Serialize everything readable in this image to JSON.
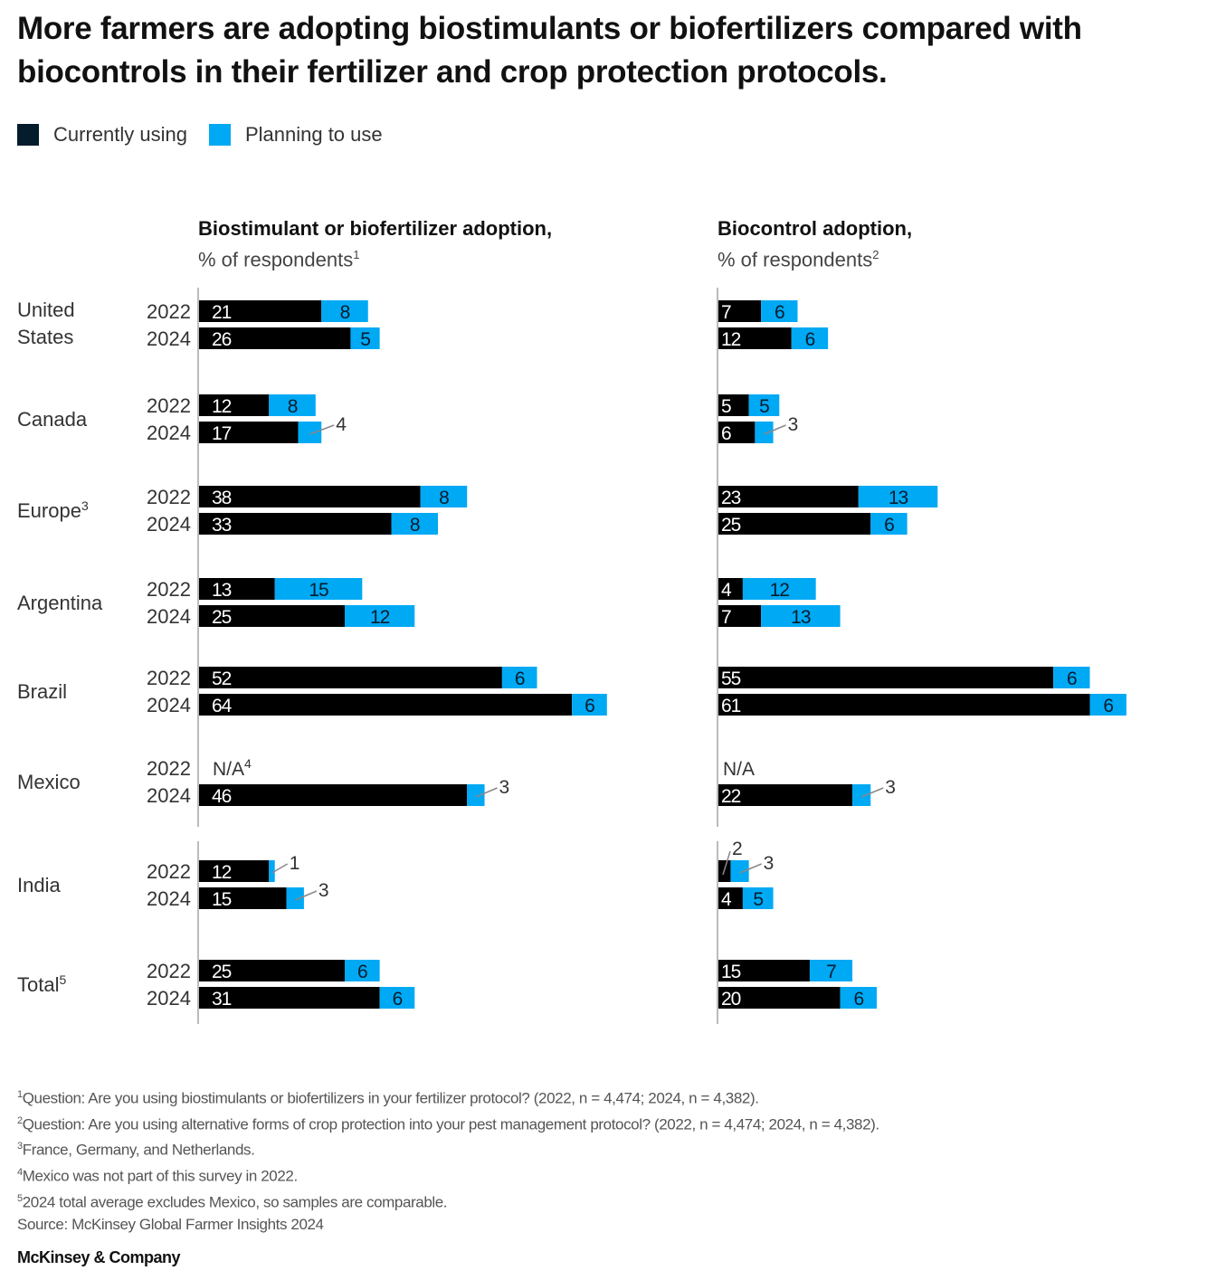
{
  "title": "More farmers are adopting biostimulants or biofertilizers compared with biocontrols in their fertilizer and crop protection protocols.",
  "legend": [
    {
      "label": "Currently using",
      "color": "#051c2c"
    },
    {
      "label": "Planning to use",
      "color": "#00a9f4"
    }
  ],
  "panels": [
    {
      "title": "Biostimulant or biofertilizer adoption,",
      "subtitle": "% of respondents",
      "footnote_ref": "1"
    },
    {
      "title": "Biocontrol adoption,",
      "subtitle": "% of respondents",
      "footnote_ref": "2"
    }
  ],
  "colors": {
    "current": "#000000",
    "planning": "#00a9f4",
    "axis": "#bbbbbb"
  },
  "chart_data": [
    {
      "type": "bar",
      "stacked": true,
      "orientation": "horizontal",
      "title": "Biostimulant or biofertilizer adoption, % of respondents",
      "legend": [
        "Currently using",
        "Planning to use"
      ],
      "groups": [
        {
          "label": "United States",
          "footnote": "",
          "rows": [
            {
              "year": "2022",
              "current": 21,
              "planning": 8
            },
            {
              "year": "2024",
              "current": 26,
              "planning": 5
            }
          ]
        },
        {
          "label": "Canada",
          "footnote": "",
          "rows": [
            {
              "year": "2022",
              "current": 12,
              "planning": 8
            },
            {
              "year": "2024",
              "current": 17,
              "planning": 4,
              "planning_callout": true
            }
          ]
        },
        {
          "label": "Europe",
          "footnote": "3",
          "rows": [
            {
              "year": "2022",
              "current": 38,
              "planning": 8
            },
            {
              "year": "2024",
              "current": 33,
              "planning": 8
            }
          ]
        },
        {
          "label": "Argentina",
          "footnote": "",
          "rows": [
            {
              "year": "2022",
              "current": 13,
              "planning": 15
            },
            {
              "year": "2024",
              "current": 25,
              "planning": 12
            }
          ]
        },
        {
          "label": "Brazil",
          "footnote": "",
          "rows": [
            {
              "year": "2022",
              "current": 52,
              "planning": 6
            },
            {
              "year": "2024",
              "current": 64,
              "planning": 6
            }
          ]
        },
        {
          "label": "Mexico",
          "footnote": "",
          "rows": [
            {
              "year": "2022",
              "na": "N/A",
              "na_footnote": "4"
            },
            {
              "year": "2024",
              "current": 46,
              "planning": 3,
              "planning_callout": true
            }
          ]
        },
        {
          "label": "India",
          "footnote": "",
          "rows": [
            {
              "year": "2022",
              "current": 12,
              "planning": 1,
              "planning_callout": true
            },
            {
              "year": "2024",
              "current": 15,
              "planning": 3,
              "planning_callout": true
            }
          ]
        },
        {
          "label": "Total",
          "footnote": "5",
          "rows": [
            {
              "year": "2022",
              "current": 25,
              "planning": 6
            },
            {
              "year": "2024",
              "current": 31,
              "planning": 6
            }
          ]
        }
      ]
    },
    {
      "type": "bar",
      "stacked": true,
      "orientation": "horizontal",
      "title": "Biocontrol adoption, % of respondents",
      "legend": [
        "Currently using",
        "Planning to use"
      ],
      "groups": [
        {
          "label": "United States",
          "rows": [
            {
              "year": "2022",
              "current": 7,
              "planning": 6
            },
            {
              "year": "2024",
              "current": 12,
              "planning": 6
            }
          ]
        },
        {
          "label": "Canada",
          "rows": [
            {
              "year": "2022",
              "current": 5,
              "planning": 5
            },
            {
              "year": "2024",
              "current": 6,
              "planning": 3,
              "planning_callout": true
            }
          ]
        },
        {
          "label": "Europe",
          "rows": [
            {
              "year": "2022",
              "current": 23,
              "planning": 13
            },
            {
              "year": "2024",
              "current": 25,
              "planning": 6
            }
          ]
        },
        {
          "label": "Argentina",
          "rows": [
            {
              "year": "2022",
              "current": 4,
              "planning": 12
            },
            {
              "year": "2024",
              "current": 7,
              "planning": 13
            }
          ]
        },
        {
          "label": "Brazil",
          "rows": [
            {
              "year": "2022",
              "current": 55,
              "planning": 6
            },
            {
              "year": "2024",
              "current": 61,
              "planning": 6
            }
          ]
        },
        {
          "label": "Mexico",
          "rows": [
            {
              "year": "2022",
              "na": "N/A"
            },
            {
              "year": "2024",
              "current": 22,
              "planning": 3,
              "planning_callout": true
            }
          ]
        },
        {
          "label": "India",
          "rows": [
            {
              "year": "2022",
              "current": 2,
              "planning": 3,
              "current_callout": true,
              "planning_callout": true
            },
            {
              "year": "2024",
              "current": 4,
              "planning": 5
            }
          ]
        },
        {
          "label": "Total",
          "rows": [
            {
              "year": "2022",
              "current": 15,
              "planning": 7
            },
            {
              "year": "2024",
              "current": 20,
              "planning": 6
            }
          ]
        }
      ]
    }
  ],
  "footnotes": [
    {
      "ref": "1",
      "text": "Question: Are you using biostimulants or biofertilizers in your fertilizer protocol? (2022, n = 4,474; 2024, n = 4,382)."
    },
    {
      "ref": "2",
      "text": "Question: Are you using alternative forms of crop protection into your pest management protocol? (2022, n = 4,474; 2024, n = 4,382)."
    },
    {
      "ref": "3",
      "text": "France, Germany, and Netherlands."
    },
    {
      "ref": "4",
      "text": "Mexico was not part of this survey in 2022."
    },
    {
      "ref": "5",
      "text": "2024 total average excludes Mexico, so samples are comparable."
    }
  ],
  "source": "Source: McKinsey Global Farmer Insights 2024",
  "brand": "McKinsey & Company"
}
